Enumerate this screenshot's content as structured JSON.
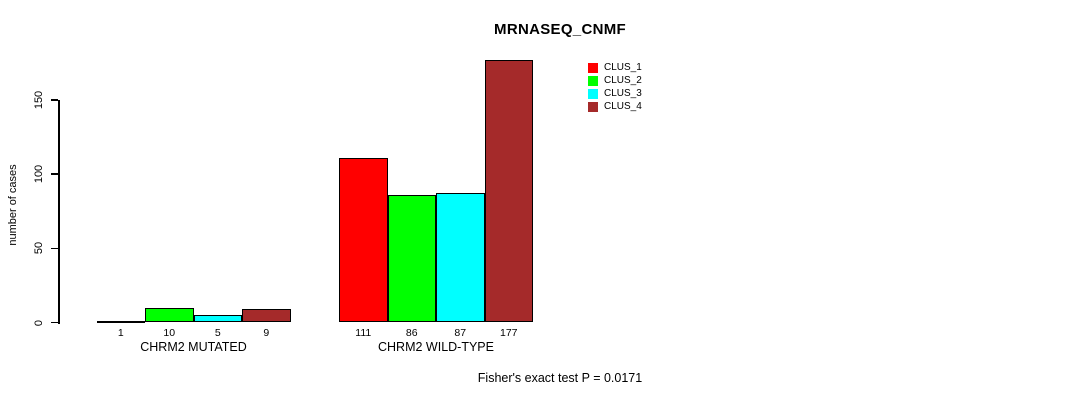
{
  "title": "MRNASEQ_CNMF",
  "ylabel": "number of cases",
  "footer": "Fisher's exact test P = 0.0171",
  "legend": {
    "items": [
      {
        "label": "CLUS_1",
        "color": "#ff0000"
      },
      {
        "label": "CLUS_2",
        "color": "#00ff00"
      },
      {
        "label": "CLUS_3",
        "color": "#00ffff"
      },
      {
        "label": "CLUS_4",
        "color": "#a52a2a"
      }
    ]
  },
  "chart_data": {
    "type": "bar",
    "title": "MRNASEQ_CNMF",
    "xlabel": "",
    "ylabel": "number of cases",
    "categories": [
      "CHRM2 MUTATED",
      "CHRM2 WILD-TYPE"
    ],
    "series": [
      {
        "name": "CLUS_1",
        "color": "#ff0000",
        "values": [
          1,
          111
        ]
      },
      {
        "name": "CLUS_2",
        "color": "#00ff00",
        "values": [
          10,
          86
        ]
      },
      {
        "name": "CLUS_3",
        "color": "#00ffff",
        "values": [
          5,
          87
        ]
      },
      {
        "name": "CLUS_4",
        "color": "#a52a2a",
        "values": [
          9,
          177
        ]
      }
    ],
    "bar_value_labels": [
      [
        "1",
        "10",
        "5",
        "9"
      ],
      [
        "111",
        "86",
        "87",
        "177"
      ]
    ],
    "yticks": [
      0,
      50,
      100,
      150
    ],
    "ylim": [
      0,
      180
    ],
    "grid": false,
    "legend_position": "top-right",
    "annotation": "Fisher's exact test P = 0.0171"
  }
}
